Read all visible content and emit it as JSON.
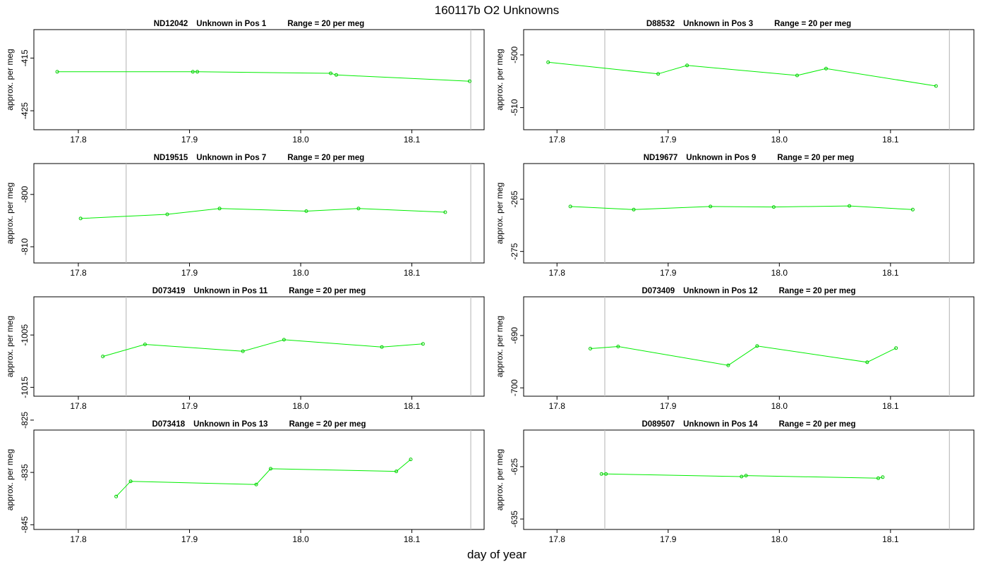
{
  "figure": {
    "title": "160117b  O2 Unknowns",
    "xlabel": "day of year"
  },
  "colors": {
    "series": "#00ee00",
    "marker": "#00cc00",
    "vline": "#bfbfbf",
    "axis": "#000000"
  },
  "chart_data": [
    {
      "type": "line",
      "title": {
        "id": "ND12042",
        "pos": "Unknown in Pos 1",
        "range": "Range = 20 per meg"
      },
      "ylabel": "approx. per meg",
      "xlim": [
        17.76,
        18.165
      ],
      "ylim": [
        -428.6,
        -409.6
      ],
      "xticks": [
        17.8,
        17.9,
        18.0,
        18.1
      ],
      "xtick_labels": [
        "17.8",
        "17.9",
        "18.0",
        "18.1"
      ],
      "yticks": [
        -415,
        -425
      ],
      "ytick_labels": [
        "-415",
        "-425"
      ],
      "vlines": [
        17.843,
        18.153
      ],
      "x": [
        17.781,
        17.903,
        17.907,
        18.027,
        18.032,
        18.152
      ],
      "y": [
        -417.6,
        -417.6,
        -417.6,
        -417.9,
        -418.2,
        -419.4
      ]
    },
    {
      "type": "line",
      "title": {
        "id": "D88532",
        "pos": "Unknown in Pos 3",
        "range": "Range = 20 per meg"
      },
      "ylabel": "approx. per meg",
      "xlim": [
        17.77,
        18.175
      ],
      "ylim": [
        -514.2,
        -495.2
      ],
      "xticks": [
        17.8,
        17.9,
        18.0,
        18.1
      ],
      "xtick_labels": [
        "17.8",
        "17.9",
        "18.0",
        "18.1"
      ],
      "yticks": [
        -500,
        -510
      ],
      "ytick_labels": [
        "-500",
        "-510"
      ],
      "vlines": [
        17.843,
        18.153
      ],
      "x": [
        17.792,
        17.891,
        17.917,
        18.016,
        18.042,
        18.141
      ],
      "y": [
        -501.4,
        -503.6,
        -502.0,
        -503.9,
        -502.6,
        -505.9
      ]
    },
    {
      "type": "line",
      "title": {
        "id": "ND19515",
        "pos": "Unknown in Pos 7",
        "range": "Range = 20 per meg"
      },
      "ylabel": "approx. per meg",
      "xlim": [
        17.76,
        18.165
      ],
      "ylim": [
        -813.1,
        -794.1
      ],
      "xticks": [
        17.8,
        17.9,
        18.0,
        18.1
      ],
      "xtick_labels": [
        "17.8",
        "17.9",
        "18.0",
        "18.1"
      ],
      "yticks": [
        -800,
        -810
      ],
      "ytick_labels": [
        "-800",
        "-810"
      ],
      "vlines": [
        17.843,
        18.153
      ],
      "x": [
        17.802,
        17.88,
        17.927,
        18.005,
        18.052,
        18.13
      ],
      "y": [
        -804.6,
        -803.8,
        -802.7,
        -803.2,
        -802.7,
        -803.4
      ]
    },
    {
      "type": "line",
      "title": {
        "id": "ND19677",
        "pos": "Unknown in Pos 9",
        "range": "Range = 20 per meg"
      },
      "ylabel": "approx. per meg",
      "xlim": [
        17.77,
        18.175
      ],
      "ylim": [
        -277.2,
        -258.2
      ],
      "xticks": [
        17.8,
        17.9,
        18.0,
        18.1
      ],
      "xtick_labels": [
        "17.8",
        "17.9",
        "18.0",
        "18.1"
      ],
      "yticks": [
        -265,
        -275
      ],
      "ytick_labels": [
        "-265",
        "-275"
      ],
      "vlines": [
        17.843,
        18.153
      ],
      "x": [
        17.812,
        17.869,
        17.938,
        17.995,
        18.063,
        18.12
      ],
      "y": [
        -266.4,
        -267.0,
        -266.4,
        -266.5,
        -266.3,
        -267.0
      ]
    },
    {
      "type": "line",
      "title": {
        "id": "D073419",
        "pos": "Unknown in Pos 11",
        "range": "Range = 20 per meg"
      },
      "ylabel": "approx. per meg",
      "xlim": [
        17.76,
        18.165
      ],
      "ylim": [
        -1016.7,
        -997.7
      ],
      "xticks": [
        17.8,
        17.9,
        18.0,
        18.1
      ],
      "xtick_labels": [
        "17.8",
        "17.9",
        "18.0",
        "18.1"
      ],
      "yticks": [
        -1005,
        -1015
      ],
      "ytick_labels": [
        "-1005",
        "-1015"
      ],
      "vlines": [
        17.843,
        18.153
      ],
      "x": [
        17.822,
        17.86,
        17.948,
        17.985,
        18.073,
        18.11
      ],
      "y": [
        -1009.1,
        -1006.8,
        -1008.1,
        -1005.9,
        -1007.3,
        -1006.7
      ]
    },
    {
      "type": "line",
      "title": {
        "id": "D073409",
        "pos": "Unknown in Pos 12",
        "range": "Range = 20 per meg"
      },
      "ylabel": "approx. per meg",
      "xlim": [
        17.77,
        18.175
      ],
      "ylim": [
        -701.6,
        -682.6
      ],
      "xticks": [
        17.8,
        17.9,
        18.0,
        18.1
      ],
      "xtick_labels": [
        "17.8",
        "17.9",
        "18.0",
        "18.1"
      ],
      "yticks": [
        -690,
        -700
      ],
      "ytick_labels": [
        "-690",
        "-700"
      ],
      "vlines": [
        17.843,
        18.153
      ],
      "x": [
        17.83,
        17.855,
        17.954,
        17.98,
        18.079,
        18.105
      ],
      "y": [
        -692.5,
        -692.1,
        -695.7,
        -692.0,
        -695.1,
        -692.4
      ]
    },
    {
      "type": "line",
      "title": {
        "id": "D073418",
        "pos": "Unknown in Pos 13",
        "range": "Range = 20 per meg"
      },
      "ylabel": "approx. per meg",
      "xlim": [
        17.76,
        18.165
      ],
      "ylim": [
        -845.9,
        -826.9
      ],
      "xticks": [
        17.8,
        17.9,
        18.0,
        18.1
      ],
      "xtick_labels": [
        "17.8",
        "17.9",
        "18.0",
        "18.1"
      ],
      "yticks": [
        -825,
        -835,
        -845
      ],
      "ytick_labels": [
        "-825",
        "-835",
        "-845"
      ],
      "vlines": [
        17.843,
        18.153
      ],
      "x": [
        17.834,
        17.847,
        17.96,
        17.973,
        18.086,
        18.099
      ],
      "y": [
        -839.6,
        -836.7,
        -837.3,
        -834.3,
        -834.8,
        -832.5
      ]
    },
    {
      "type": "line",
      "title": {
        "id": "D089507",
        "pos": "Unknown in Pos 14",
        "range": "Range = 20 per meg"
      },
      "ylabel": "approx. per meg",
      "xlim": [
        17.77,
        18.175
      ],
      "ylim": [
        -637.0,
        -618.0
      ],
      "xticks": [
        17.8,
        17.9,
        18.0,
        18.1
      ],
      "xtick_labels": [
        "17.8",
        "17.9",
        "18.0",
        "18.1"
      ],
      "yticks": [
        -625,
        -635
      ],
      "ytick_labels": [
        "-625",
        "-635"
      ],
      "vlines": [
        17.843,
        18.153
      ],
      "x": [
        17.84,
        17.844,
        17.966,
        17.97,
        18.089,
        18.093
      ],
      "y": [
        -626.4,
        -626.4,
        -626.9,
        -626.7,
        -627.2,
        -627.0
      ]
    }
  ]
}
